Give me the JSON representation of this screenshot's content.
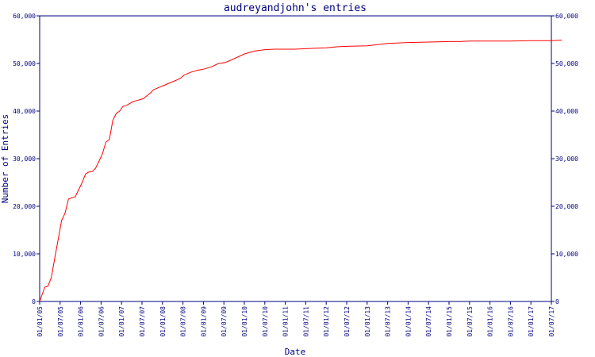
{
  "chart_data": {
    "type": "line",
    "title": "audreyandjohn's entries",
    "xlabel": "Date",
    "ylabel": "Number of Entries",
    "colors": {
      "axis": "#000080",
      "line": "#ff0000"
    },
    "ylim": [
      0,
      60000
    ],
    "y_ticks": [
      "0",
      "10,000",
      "20,000",
      "30,000",
      "40,000",
      "50,000",
      "60,000"
    ],
    "y_tick_values": [
      0,
      10000,
      20000,
      30000,
      40000,
      50000,
      60000
    ],
    "x_ticks": [
      "01/01/05",
      "01/07/05",
      "01/01/06",
      "01/07/06",
      "01/01/07",
      "01/07/07",
      "01/01/08",
      "01/07/08",
      "01/01/09",
      "01/07/09",
      "01/01/10",
      "01/07/10",
      "01/01/11",
      "01/07/11",
      "01/01/12",
      "01/07/12",
      "01/01/13",
      "01/07/13",
      "01/01/14",
      "01/07/14",
      "01/01/15",
      "01/07/15",
      "01/01/16",
      "01/07/16",
      "01/01/17",
      "01/07/17"
    ],
    "grid": false,
    "series": [
      {
        "name": "",
        "x": [
          "2005-01-01",
          "2005-02-15",
          "2005-03-15",
          "2005-04-15",
          "2005-05-15",
          "2005-06-15",
          "2005-07-15",
          "2005-08-15",
          "2005-09-15",
          "2005-10-15",
          "2005-11-15",
          "2005-12-15",
          "2006-01-15",
          "2006-02-15",
          "2006-03-15",
          "2006-04-15",
          "2006-05-15",
          "2006-06-15",
          "2006-07-15",
          "2006-08-15",
          "2006-09-15",
          "2006-10-15",
          "2006-11-15",
          "2006-12-15",
          "2007-01-15",
          "2007-02-15",
          "2007-03-15",
          "2007-04-15",
          "2007-05-15",
          "2007-06-15",
          "2007-07-15",
          "2007-08-15",
          "2007-09-15",
          "2007-10-15",
          "2007-11-15",
          "2007-12-15",
          "2008-01-15",
          "2008-03-15",
          "2008-05-15",
          "2008-06-15",
          "2008-07-15",
          "2008-09-15",
          "2008-11-15",
          "2009-01-01",
          "2009-03-15",
          "2009-05-15",
          "2009-07-15",
          "2009-10-01",
          "2010-01-01",
          "2010-04-01",
          "2010-07-01",
          "2010-10-01",
          "2011-01-01",
          "2011-04-01",
          "2011-07-01",
          "2011-10-01",
          "2012-01-01",
          "2012-04-01",
          "2012-07-01",
          "2013-01-01",
          "2013-07-01",
          "2014-01-01",
          "2014-07-01",
          "2015-01-01",
          "2015-04-01",
          "2015-07-01",
          "2016-01-01",
          "2016-07-01",
          "2017-01-01",
          "2017-07-01",
          "2017-10-01"
        ],
        "values": [
          0,
          3000,
          3200,
          5000,
          9000,
          13000,
          17000,
          18500,
          21500,
          21800,
          22000,
          23500,
          25000,
          26800,
          27200,
          27300,
          28000,
          29500,
          31000,
          33500,
          34000,
          38000,
          39500,
          40000,
          41000,
          41200,
          41600,
          42000,
          42200,
          42400,
          42600,
          43200,
          43800,
          44500,
          44800,
          45100,
          45400,
          46000,
          46600,
          47000,
          47600,
          48200,
          48600,
          48800,
          49300,
          50000,
          50200,
          51000,
          52000,
          52600,
          52900,
          53000,
          53000,
          53000,
          53100,
          53200,
          53300,
          53500,
          53600,
          53700,
          54200,
          54400,
          54500,
          54600,
          54600,
          54700,
          54700,
          54700,
          54800,
          54800,
          54900
        ]
      }
    ],
    "x_range": [
      "2005-01-01",
      "2017-07-01"
    ]
  }
}
